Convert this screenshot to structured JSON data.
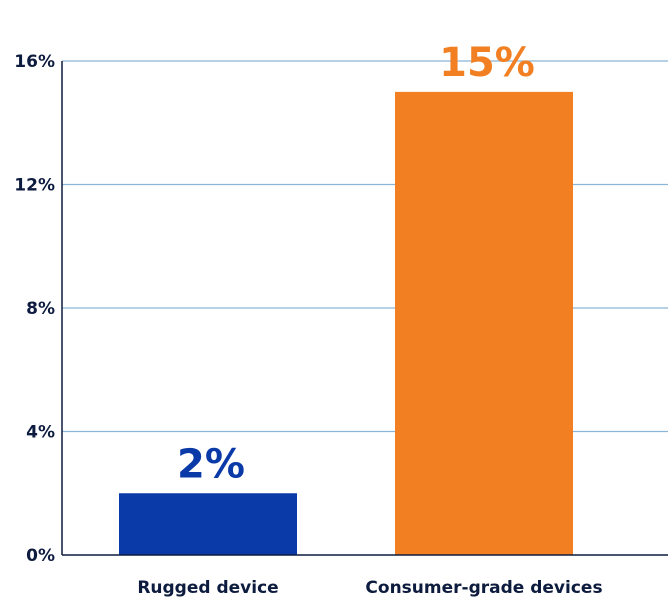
{
  "chart_data": {
    "type": "bar",
    "categories": [
      "Rugged device",
      "Consumer-grade devices"
    ],
    "values": [
      2,
      15
    ],
    "data_labels": [
      "2%",
      "15%"
    ],
    "colors": [
      "#0a3aa8",
      "#f27f22"
    ],
    "title": "",
    "xlabel": "",
    "ylabel": "",
    "ylim": [
      0,
      16
    ],
    "yticks": [
      0,
      4,
      8,
      12,
      16
    ],
    "ytick_labels": [
      "0%",
      "4%",
      "8%",
      "12%",
      "16%"
    ],
    "grid": true,
    "gridline_color": "#8ab4d8",
    "axis_color": "#0d1b3e",
    "legend": "none"
  }
}
